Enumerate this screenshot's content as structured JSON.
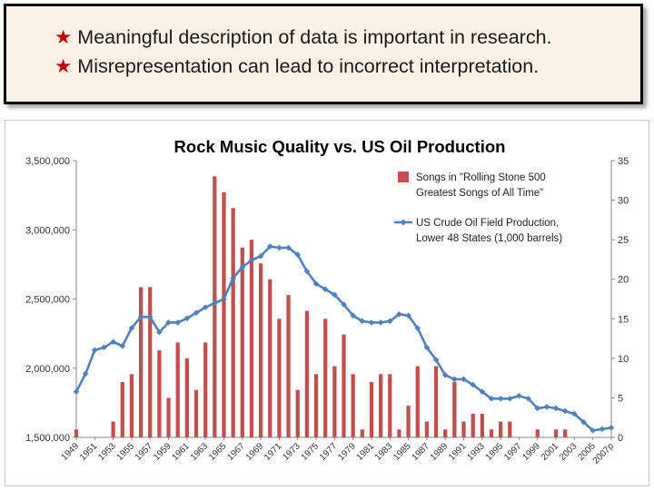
{
  "notes": [
    {
      "star": "★",
      "text": "Meaningful description of data is important in research."
    },
    {
      "star": "★",
      "text": "Misrepresentation can lead to incorrect interpretation."
    }
  ],
  "colors": {
    "bar": "#c0504d",
    "line": "#4f81bd",
    "star": "#c00000",
    "note_bg": "#fbf1e6"
  },
  "chart_data": {
    "type": "bar+line",
    "title": "Rock Music Quality vs. US Oil Production",
    "x": [
      1949,
      1950,
      1951,
      1952,
      1953,
      1954,
      1955,
      1956,
      1957,
      1958,
      1959,
      1960,
      1961,
      1962,
      1963,
      1964,
      1965,
      1966,
      1967,
      1968,
      1969,
      1970,
      1971,
      1972,
      1973,
      1974,
      1975,
      1976,
      1977,
      1978,
      1979,
      1980,
      1981,
      1982,
      1983,
      1984,
      1985,
      1986,
      1987,
      1988,
      1989,
      1990,
      1991,
      1992,
      1993,
      1994,
      1995,
      1996,
      1997,
      1998,
      1999,
      2000,
      2001,
      2002,
      2003,
      2004,
      2005,
      2006,
      2007
    ],
    "x_tick_labels": [
      "1949",
      "1951",
      "1953",
      "1955",
      "1957",
      "1959",
      "1961",
      "1963",
      "1965",
      "1967",
      "1969",
      "1971",
      "1973",
      "1975",
      "1977",
      "1979",
      "1981",
      "1983",
      "1985",
      "1987",
      "1989",
      "1991",
      "1993",
      "1995",
      "1997",
      "1999",
      "2001",
      "2003",
      "2005",
      "2007p"
    ],
    "left_axis": {
      "ticks": [
        "1,500,000",
        "2,000,000",
        "2,500,000",
        "3,000,000",
        "3,500,000"
      ],
      "ylim": [
        1500000,
        3500000
      ]
    },
    "right_axis": {
      "ticks": [
        "0",
        "5",
        "10",
        "15",
        "20",
        "25",
        "30",
        "35"
      ],
      "ylim": [
        0,
        35
      ]
    },
    "series": [
      {
        "name": "Songs in \"Rolling Stone 500 Greatest Songs of All Time\"",
        "legend_lines": [
          "Songs in \"Rolling Stone 500",
          "Greatest Songs of All Time\""
        ],
        "type": "bar",
        "axis": "right",
        "values": [
          1,
          0,
          0,
          0,
          2,
          7,
          8,
          19,
          19,
          11,
          5,
          12,
          10,
          6,
          12,
          33,
          31,
          29,
          24,
          25,
          22,
          20,
          15,
          18,
          6,
          16,
          8,
          15,
          9,
          13,
          8,
          1,
          7,
          8,
          8,
          1,
          4,
          9,
          2,
          9,
          1,
          7,
          2,
          3,
          3,
          1,
          2,
          2,
          0,
          0,
          1,
          0,
          1,
          1,
          0,
          0,
          0,
          0,
          0
        ]
      },
      {
        "name": "US Crude Oil Field Production, Lower 48 States (1,000 barrels)",
        "legend_lines": [
          "US Crude Oil Field Production,",
          "Lower 48 States (1,000 barrels)"
        ],
        "type": "line",
        "axis": "left",
        "values": [
          1830000,
          1960000,
          2130000,
          2150000,
          2190000,
          2160000,
          2290000,
          2370000,
          2370000,
          2260000,
          2330000,
          2330000,
          2360000,
          2400000,
          2440000,
          2470000,
          2500000,
          2650000,
          2730000,
          2780000,
          2810000,
          2880000,
          2870000,
          2870000,
          2820000,
          2700000,
          2610000,
          2570000,
          2530000,
          2460000,
          2380000,
          2340000,
          2330000,
          2330000,
          2340000,
          2390000,
          2380000,
          2290000,
          2150000,
          2060000,
          1950000,
          1920000,
          1920000,
          1880000,
          1830000,
          1780000,
          1780000,
          1780000,
          1800000,
          1780000,
          1710000,
          1720000,
          1710000,
          1690000,
          1670000,
          1610000,
          1550000,
          1560000,
          1570000
        ]
      }
    ],
    "grid": false,
    "legend_position": "top-right"
  }
}
